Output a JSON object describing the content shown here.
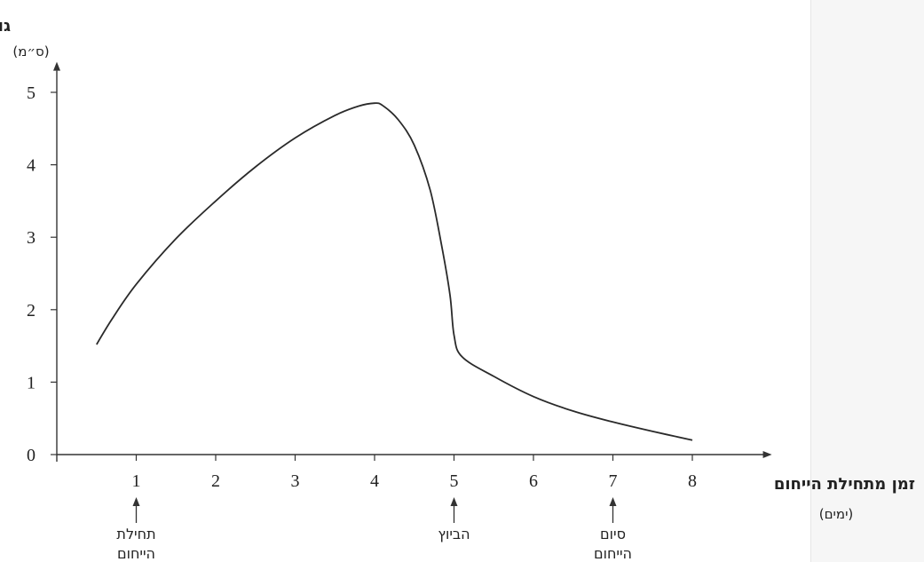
{
  "chart_data": {
    "type": "line",
    "title": "",
    "ylabel": "גודל הזקיק",
    "yunit": "(ס״מ)",
    "xlabel": "זמן מתחילת הייחום",
    "xunit": "(ימים)",
    "xlim": [
      0,
      8.9
    ],
    "ylim": [
      0,
      5.2
    ],
    "xticks": [
      "1",
      "2",
      "3",
      "4",
      "5",
      "6",
      "7",
      "8"
    ],
    "yticks": [
      "0",
      "1",
      "2",
      "3",
      "4",
      "5"
    ],
    "grid": false,
    "series": [
      {
        "x": [
          0.5,
          0.7,
          1.0,
          1.5,
          2.0,
          2.5,
          3.0,
          3.5,
          3.8,
          4.0,
          4.1,
          4.3,
          4.5,
          4.7,
          4.85,
          4.95,
          5.0,
          5.1,
          5.5,
          6.0,
          6.5,
          7.0,
          7.5,
          8.0
        ],
        "y": [
          1.52,
          1.88,
          2.35,
          2.98,
          3.5,
          3.97,
          4.37,
          4.68,
          4.81,
          4.85,
          4.82,
          4.62,
          4.27,
          3.65,
          2.85,
          2.2,
          1.65,
          1.35,
          1.08,
          0.8,
          0.6,
          0.45,
          0.32,
          0.2
        ]
      }
    ],
    "annotations": [
      {
        "x": 1,
        "lines": [
          "תחילת",
          "הייחום"
        ]
      },
      {
        "x": 5,
        "lines": [
          "הביוץ"
        ]
      },
      {
        "x": 7,
        "lines": [
          "סיום",
          "הייחום"
        ]
      }
    ]
  }
}
